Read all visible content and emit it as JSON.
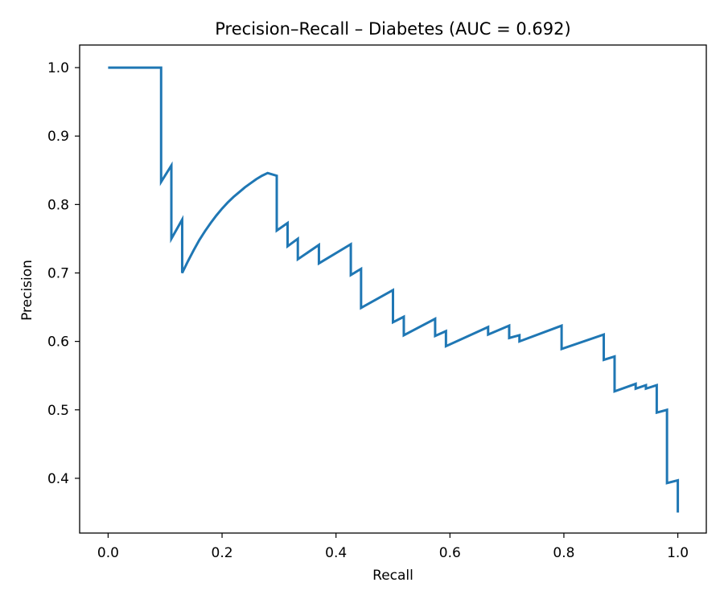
{
  "chart_data": {
    "type": "line",
    "title": "Precision–Recall – Diabetes (AUC = 0.692)",
    "xlabel": "Recall",
    "ylabel": "Precision",
    "xlim": [
      -0.05,
      1.05
    ],
    "ylim": [
      0.32,
      1.033
    ],
    "x_ticks": [
      0.0,
      0.2,
      0.4,
      0.6,
      0.8,
      1.0
    ],
    "x_tick_labels": [
      "0.0",
      "0.2",
      "0.4",
      "0.6",
      "0.8",
      "1.0"
    ],
    "y_ticks": [
      0.4,
      0.5,
      0.6,
      0.7,
      0.8,
      0.9,
      1.0
    ],
    "y_tick_labels": [
      "0.4",
      "0.5",
      "0.6",
      "0.7",
      "0.8",
      "0.9",
      "1.0"
    ],
    "grid": false,
    "series": [
      {
        "color": "#1f77b4",
        "x": [
          0.0,
          0.093,
          0.093,
          0.111,
          0.111,
          0.13,
          0.13,
          0.14,
          0.15,
          0.16,
          0.17,
          0.18,
          0.19,
          0.2,
          0.21,
          0.22,
          0.23,
          0.24,
          0.25,
          0.26,
          0.27,
          0.28,
          0.296,
          0.296,
          0.315,
          0.315,
          0.333,
          0.333,
          0.37,
          0.37,
          0.426,
          0.426,
          0.444,
          0.444,
          0.5,
          0.5,
          0.519,
          0.519,
          0.574,
          0.574,
          0.593,
          0.593,
          0.667,
          0.667,
          0.704,
          0.704,
          0.722,
          0.722,
          0.796,
          0.796,
          0.87,
          0.87,
          0.889,
          0.889,
          0.926,
          0.926,
          0.944,
          0.944,
          0.963,
          0.963,
          0.981,
          0.981,
          1.0,
          1.0
        ],
        "y": [
          1.0,
          1.0,
          0.833,
          0.857,
          0.75,
          0.778,
          0.7,
          0.717,
          0.733,
          0.748,
          0.761,
          0.773,
          0.784,
          0.794,
          0.803,
          0.811,
          0.818,
          0.825,
          0.831,
          0.837,
          0.842,
          0.846,
          0.842,
          0.762,
          0.773,
          0.739,
          0.75,
          0.72,
          0.741,
          0.714,
          0.742,
          0.697,
          0.706,
          0.649,
          0.675,
          0.628,
          0.636,
          0.609,
          0.633,
          0.608,
          0.615,
          0.593,
          0.621,
          0.61,
          0.623,
          0.605,
          0.609,
          0.6,
          0.623,
          0.589,
          0.61,
          0.573,
          0.578,
          0.527,
          0.538,
          0.531,
          0.536,
          0.531,
          0.536,
          0.496,
          0.5,
          0.393,
          0.397,
          0.35
        ]
      }
    ]
  }
}
